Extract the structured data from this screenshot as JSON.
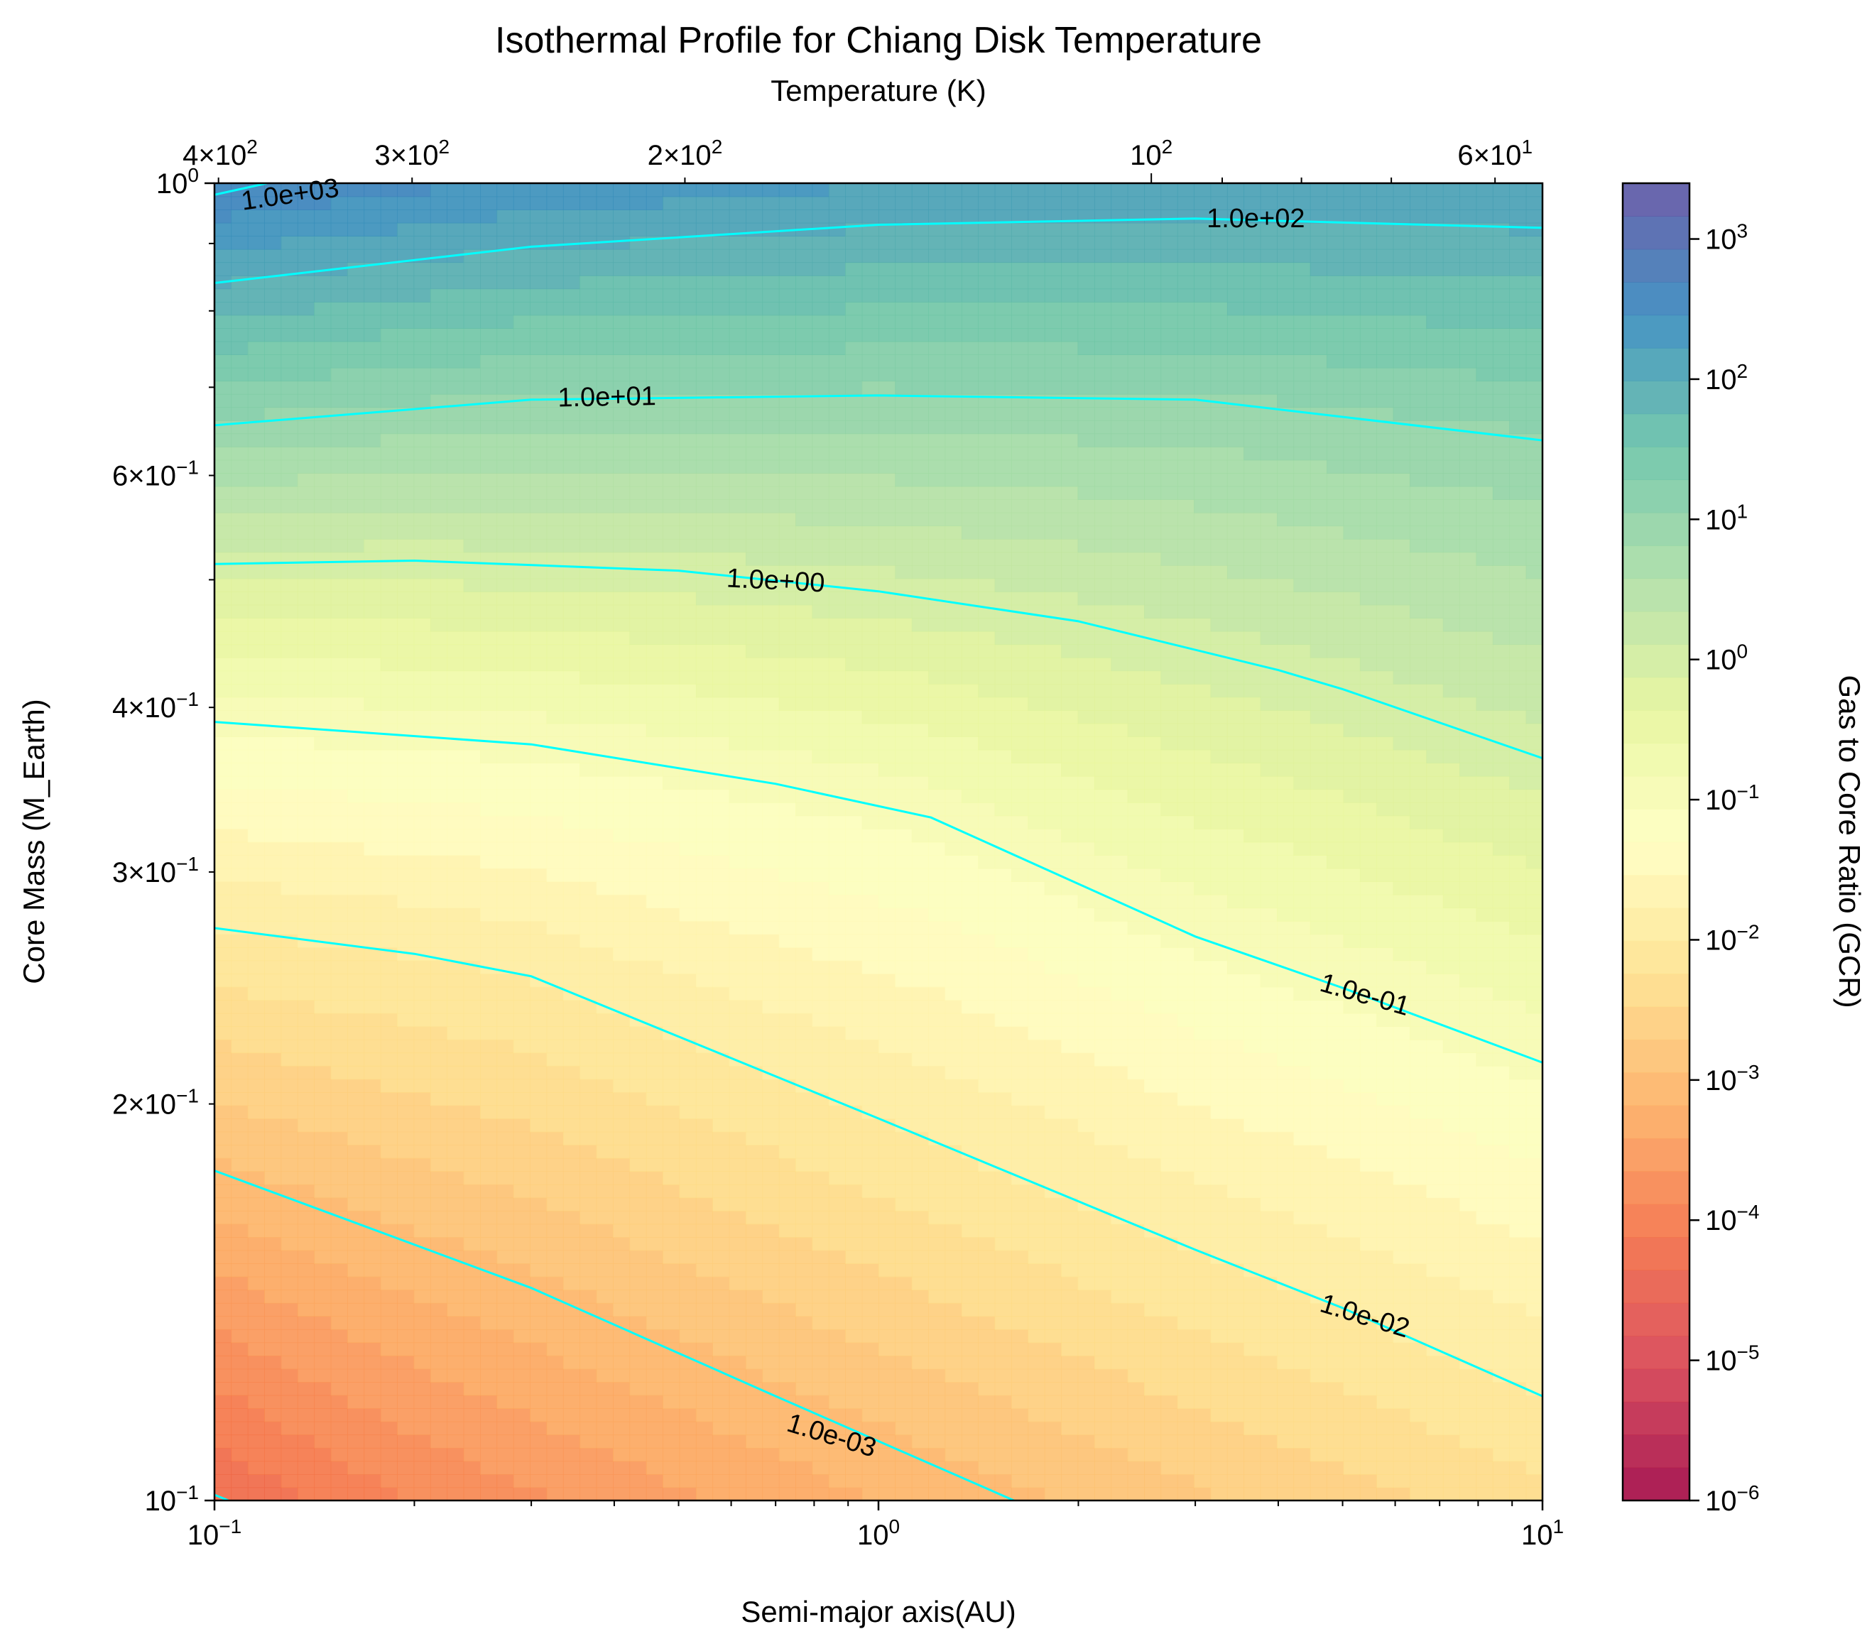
{
  "chart_data": {
    "type": "contour",
    "title": "Isothermal Profile for Chiang Disk Temperature",
    "xlabel": "Semi-major axis(AU)",
    "ylabel": "Core Mass (M_Earth)",
    "top_xlabel": "Temperature (K)",
    "colorbar_label": "Gas to Core Ratio (GCR)",
    "x_scale": "log",
    "y_scale": "log",
    "xlim": [
      0.1,
      10
    ],
    "ylim": [
      0.1,
      1.0
    ],
    "colorbar_range": [
      1e-06,
      2500
    ],
    "colormap": "Spectral",
    "contour_line_color": "#00ffff",
    "x_ticks": [
      {
        "value": 0.1,
        "label": "10^-1"
      },
      {
        "value": 1,
        "label": "10^0"
      },
      {
        "value": 10,
        "label": "10^1"
      }
    ],
    "y_ticks": [
      {
        "value": 0.1,
        "label": "10^-1"
      },
      {
        "value": 0.2,
        "label": "2×10^-1"
      },
      {
        "value": 0.3,
        "label": "3×10^-1"
      },
      {
        "value": 0.4,
        "label": "4×10^-1"
      },
      {
        "value": 0.6,
        "label": "6×10^-1"
      },
      {
        "value": 1.0,
        "label": "10^0"
      }
    ],
    "top_x_ticks": [
      {
        "value": 400,
        "label": "4×10^2"
      },
      {
        "value": 300,
        "label": "3×10^2"
      },
      {
        "value": 200,
        "label": "2×10^2"
      },
      {
        "value": 100,
        "label": "10^2"
      },
      {
        "value": 60,
        "label": "6×10^1"
      }
    ],
    "colorbar_ticks": [
      {
        "value": 1e-06,
        "label": "10^-6"
      },
      {
        "value": 1e-05,
        "label": "10^-5"
      },
      {
        "value": 0.0001,
        "label": "10^-4"
      },
      {
        "value": 0.001,
        "label": "10^-3"
      },
      {
        "value": 0.01,
        "label": "10^-2"
      },
      {
        "value": 0.1,
        "label": "10^-1"
      },
      {
        "value": 1,
        "label": "10^0"
      },
      {
        "value": 10,
        "label": "10^1"
      },
      {
        "value": 100,
        "label": "10^2"
      },
      {
        "value": 1000,
        "label": "10^3"
      }
    ],
    "contour_lines": [
      {
        "level": 1000,
        "label": "1.0e+03",
        "x": [
          0.1,
          0.12
        ],
        "y": [
          0.98,
          1.0
        ]
      },
      {
        "level": 100,
        "label": "1.0e+02",
        "x": [
          0.1,
          0.3,
          1.0,
          3.0,
          10.0
        ],
        "y": [
          0.84,
          0.895,
          0.93,
          0.94,
          0.925
        ]
      },
      {
        "level": 10,
        "label": "1.0e+01",
        "x": [
          0.1,
          0.3,
          1.0,
          3.0,
          10.0
        ],
        "y": [
          0.655,
          0.685,
          0.69,
          0.685,
          0.638
        ]
      },
      {
        "level": 1,
        "label": "1.0e+00",
        "x": [
          0.1,
          0.2,
          0.5,
          1.0,
          2.0,
          4.0,
          5.0,
          10.0
        ],
        "y": [
          0.514,
          0.517,
          0.508,
          0.49,
          0.465,
          0.427,
          0.413,
          0.366
        ]
      },
      {
        "level": 0.1,
        "label": "1.0e-01",
        "x": [
          0.1,
          0.3,
          0.7,
          1.2,
          3.0,
          5.0,
          10.0
        ],
        "y": [
          0.39,
          0.375,
          0.35,
          0.33,
          0.268,
          0.245,
          0.215
        ]
      },
      {
        "level": 0.01,
        "label": "1.0e-02",
        "x": [
          0.1,
          0.2,
          0.3,
          1.0,
          3.0,
          5.0,
          10.0
        ],
        "y": [
          0.272,
          0.26,
          0.25,
          0.195,
          0.155,
          0.14,
          0.12
        ]
      },
      {
        "level": 0.001,
        "label": "1.0e-03",
        "x": [
          0.1,
          0.3,
          0.7,
          1.6
        ],
        "y": [
          0.178,
          0.145,
          0.12,
          0.1
        ]
      },
      {
        "level": 0.0001,
        "label": "",
        "x": [
          0.1,
          0.105
        ],
        "y": [
          0.101,
          0.1
        ]
      }
    ],
    "contour_labels": [
      {
        "text": "1.0e+03",
        "x": 0.13,
        "y": 0.98,
        "angle": -8
      },
      {
        "text": "1.0e+02",
        "x": 3.7,
        "y": 0.94,
        "angle": 0
      },
      {
        "text": "1.0e+01",
        "x": 0.39,
        "y": 0.688,
        "angle": -1
      },
      {
        "text": "1.0e+00",
        "x": 0.7,
        "y": 0.499,
        "angle": 3
      },
      {
        "text": "1.0e-01",
        "x": 5.4,
        "y": 0.242,
        "angle": 16
      },
      {
        "text": "1.0e-02",
        "x": 5.4,
        "y": 0.138,
        "angle": 17
      },
      {
        "text": "1.0e-03",
        "x": 0.85,
        "y": 0.112,
        "angle": 17
      }
    ]
  }
}
